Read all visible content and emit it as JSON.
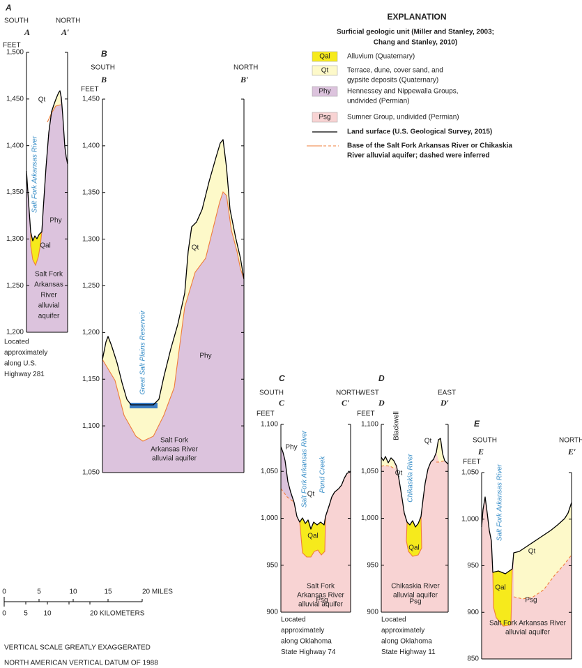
{
  "explanation": {
    "title": "EXPLANATION",
    "subtitle": [
      "Surficial geologic unit (Miller and Stanley, 2003;",
      "Chang and Stanley, 2010)"
    ],
    "units": [
      {
        "code": "Qal",
        "label": [
          "Alluvium (Quaternary)"
        ]
      },
      {
        "code": "Qt",
        "label": [
          "Terrace, dune, cover sand, and",
          "gypsite deposits (Quaternary)"
        ]
      },
      {
        "code": "Phy",
        "label": [
          "Hennessey and Nippewalla Groups,",
          "undivided (Permian)"
        ]
      },
      {
        "code": "Psg",
        "label": [
          "Sumner Group, undivided (Permian)"
        ]
      }
    ],
    "lines": [
      {
        "label": [
          "Land surface (U.S. Geological Survey, 2015)"
        ]
      },
      {
        "label": [
          "Base of the Salt Fork Arkansas River or Chikaskia",
          "River alluvial aquifer; dashed were inferred"
        ]
      }
    ]
  },
  "sections": [
    {
      "letter": "A",
      "left_dir": "SOUTH",
      "right_dir": "NORTH",
      "left_end": "A",
      "right_end": "A′",
      "unit": "FEET",
      "yticks": [
        "1,500",
        "1,450",
        "1,400",
        "1,350",
        "1,300",
        "1,250",
        "1,200"
      ],
      "annotations": [
        "Qt",
        "Salt Fork Arkansas River",
        "Phy",
        "Qal",
        "Salt Fork",
        "Arkansas",
        "River",
        "alluvial",
        "aquifer"
      ],
      "location": [
        "Located",
        "approximately",
        "along U.S.",
        "Highway 281"
      ]
    },
    {
      "letter": "B",
      "left_dir": "SOUTH",
      "right_dir": "NORTH",
      "left_end": "B",
      "right_end": "B′",
      "unit": "FEET",
      "yticks": [
        "1,450",
        "1,400",
        "1,350",
        "1,300",
        "1,250",
        "1,200",
        "1,150",
        "1,100",
        "1,050"
      ],
      "annotations": [
        "Qt",
        "Phy",
        "Great Salt Plains Reservoir",
        "Salt Fork",
        "Arkansas River",
        "alluvial aquifer"
      ],
      "location": []
    },
    {
      "letter": "C",
      "left_dir": "SOUTH",
      "right_dir": "NORTH",
      "left_end": "C",
      "right_end": "C′",
      "unit": "FEET",
      "yticks": [
        "1,100",
        "1,050",
        "1,000",
        "950",
        "900"
      ],
      "annotations": [
        "Phy",
        "Salt Fork Arkansas River",
        "Qt",
        "Pond Creek",
        "Qal",
        "Salt Fork",
        "Arkansas River",
        "alluvial aquifer",
        "Psg"
      ],
      "location": [
        "Located",
        "approximately",
        "along Oklahoma",
        "State Highway 74"
      ]
    },
    {
      "letter": "D",
      "left_dir": "WEST",
      "right_dir": "EAST",
      "left_end": "D",
      "right_end": "D′",
      "unit": "FEET",
      "yticks": [
        "1,100",
        "1,050",
        "1,000",
        "950",
        "900"
      ],
      "annotations": [
        "Blackwell",
        "Qt",
        "Chikaskia River",
        "Qt",
        "Qal",
        "Chikaskia River",
        "alluvial aquifer",
        "Psg"
      ],
      "location": [
        "Located",
        "approximately",
        "along Oklahoma",
        "State Highway 11"
      ]
    },
    {
      "letter": "E",
      "left_dir": "SOUTH",
      "right_dir": "NORTH",
      "left_end": "E",
      "right_end": "E′",
      "unit": "FEET",
      "yticks": [
        "1,050",
        "1,000",
        "950",
        "900",
        "850"
      ],
      "annotations": [
        "Salt Fork Arkansas River",
        "Qt",
        "Qal",
        "Psg",
        "Salt Fork Arkansas River",
        "alluvial aquifer"
      ],
      "location": []
    }
  ],
  "scale": {
    "miles": [
      "0",
      "5",
      "10",
      "15",
      "20 MILES"
    ],
    "kilometers": [
      "0",
      "5",
      "10",
      "20 KILOMETERS"
    ],
    "notes": [
      "VERTICAL SCALE GREATLY EXAGGERATED",
      "NORTH AMERICAN VERTICAL DATUM OF 1988"
    ]
  }
}
